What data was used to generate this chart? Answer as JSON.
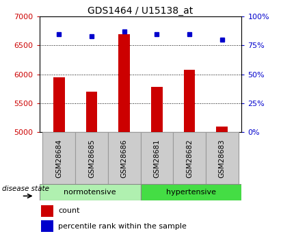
{
  "title": "GDS1464 / U15138_at",
  "samples": [
    "GSM28684",
    "GSM28685",
    "GSM28686",
    "GSM28681",
    "GSM28682",
    "GSM28683"
  ],
  "counts": [
    5950,
    5700,
    6700,
    5780,
    6080,
    5100
  ],
  "percentiles": [
    85,
    83,
    87,
    85,
    85,
    80
  ],
  "ylim_left": [
    5000,
    7000
  ],
  "ylim_right": [
    0,
    100
  ],
  "yticks_left": [
    5000,
    5500,
    6000,
    6500,
    7000
  ],
  "yticks_right": [
    0,
    25,
    50,
    75,
    100
  ],
  "bar_color": "#cc0000",
  "dot_color": "#0000cc",
  "normotensive_label": "normotensive",
  "hypertensive_label": "hypertensive",
  "disease_state_label": "disease state",
  "legend_count": "count",
  "legend_percentile": "percentile rank within the sample",
  "grid_color": "#000000",
  "tick_label_color_left": "#cc0000",
  "tick_label_color_right": "#0000cc",
  "normotensive_color": "#b0f0b0",
  "hypertensive_color": "#44dd44",
  "sample_box_color": "#cccccc",
  "fig_bg_color": "#ffffff",
  "figsize": [
    4.11,
    3.45
  ],
  "dpi": 100
}
